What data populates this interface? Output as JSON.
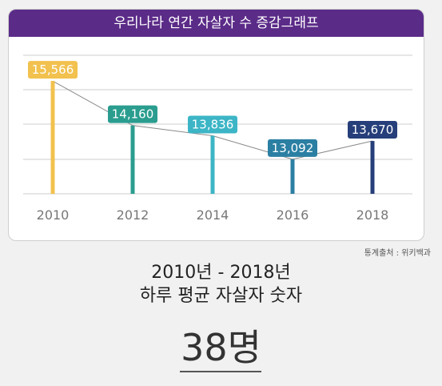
{
  "header": {
    "title": "우리나라 연간 자살자 수 증감그래프"
  },
  "source": "통계출처 : 위키백과",
  "caption": {
    "range": "2010년 - 2018년",
    "description": "하루 평균 자살자 숫자",
    "daily_value": "38명"
  },
  "chart_data": {
    "type": "bar",
    "title": "우리나라 연간 자살자 수 증감그래프",
    "categories": [
      "2010",
      "2012",
      "2014",
      "2016",
      "2018"
    ],
    "values": [
      15566,
      14160,
      13836,
      13092,
      13670
    ],
    "value_labels": [
      "15,566",
      "14,160",
      "13,836",
      "13,092",
      "13,670"
    ],
    "colors": [
      "#f2c14e",
      "#2a9d8f",
      "#3cb5c6",
      "#2b7fa3",
      "#263f7a"
    ],
    "label_colors": [
      "#f2c14e",
      "#2a9d8f",
      "#3cb5c6",
      "#2b7fa3",
      "#263f7a"
    ],
    "trend_line": true,
    "ylim": [
      12000,
      16000
    ],
    "grid": true,
    "xlabel": "",
    "ylabel": ""
  }
}
